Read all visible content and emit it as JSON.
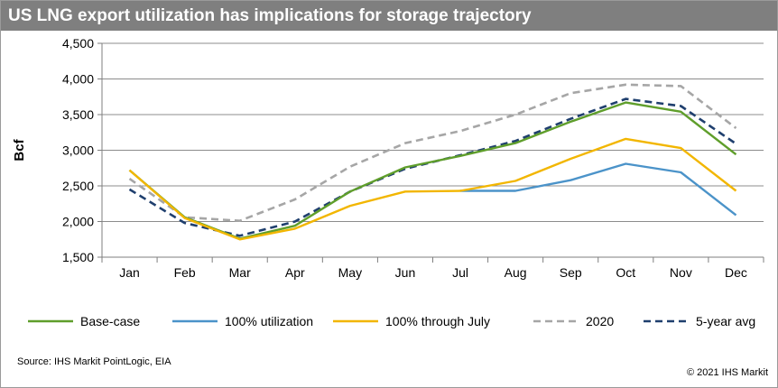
{
  "title": "US LNG export utilization has implications for storage trajectory",
  "source": "Source: IHS Markit PointLogic, EIA",
  "copyright": "© 2021 IHS Markit",
  "colors": {
    "title_bar": "#7f7f7f",
    "grid": "#8c8c8c",
    "axis": "#7f7f7f"
  },
  "chart_data": {
    "type": "line",
    "title": "US LNG export utilization has implications for storage trajectory",
    "xlabel": "",
    "ylabel": "Bcf",
    "ylim": [
      1500,
      4500
    ],
    "ytick_step": 500,
    "ytick_labels": [
      "1,500",
      "2,000",
      "2,500",
      "3,000",
      "3,500",
      "4,000",
      "4,500"
    ],
    "grid": true,
    "legend_position": "bottom",
    "categories": [
      "Jan",
      "Feb",
      "Mar",
      "Apr",
      "May",
      "Jun",
      "Jul",
      "Aug",
      "Sep",
      "Oct",
      "Nov",
      "Dec"
    ],
    "series": [
      {
        "name": "Base-case",
        "color": "#5f9e2b",
        "dash": "solid",
        "values": [
          2720,
          2060,
          1760,
          1940,
          2420,
          2760,
          2920,
          3100,
          3400,
          3670,
          3540,
          2940
        ]
      },
      {
        "name": "100% utilization",
        "color": "#4b93c9",
        "dash": "solid",
        "values": [
          null,
          null,
          null,
          null,
          null,
          null,
          2430,
          2430,
          2580,
          2810,
          2690,
          2090
        ]
      },
      {
        "name": "100% through July",
        "color": "#f2b600",
        "dash": "solid",
        "values": [
          2720,
          2050,
          1750,
          1900,
          2220,
          2420,
          2430,
          2570,
          2880,
          3160,
          3030,
          2430
        ]
      },
      {
        "name": "2020",
        "color": "#a6a6a6",
        "dash": "dashed",
        "values": [
          2600,
          2060,
          2010,
          2310,
          2770,
          3100,
          3270,
          3500,
          3800,
          3920,
          3900,
          3310
        ]
      },
      {
        "name": "5-year avg",
        "color": "#1f3f6e",
        "dash": "dashed",
        "values": [
          2450,
          1980,
          1800,
          2000,
          2420,
          2740,
          2930,
          3130,
          3440,
          3720,
          3620,
          3090
        ]
      }
    ]
  }
}
